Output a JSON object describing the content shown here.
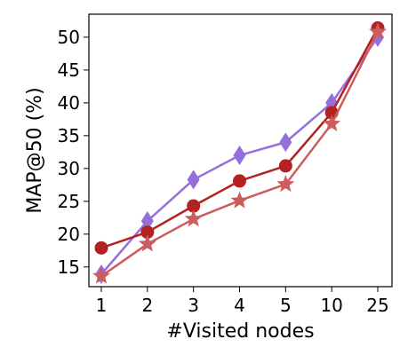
{
  "chart_data": {
    "type": "line",
    "title": "",
    "xlabel": "#Visited nodes",
    "ylabel": "MAP@50 (%)",
    "categories": [
      "1",
      "2",
      "3",
      "4",
      "5",
      "10",
      "25"
    ],
    "ylim": [
      12,
      53.5
    ],
    "yticks": [
      15,
      20,
      25,
      30,
      35,
      40,
      45,
      50
    ],
    "grid": false,
    "legend": "none",
    "series": [
      {
        "color": "#9370db",
        "marker": "thin_diamond",
        "values": [
          13.9,
          22.0,
          28.3,
          32.0,
          34.0,
          40.0,
          50.0
        ]
      },
      {
        "color": "#b22222",
        "marker": "circle",
        "values": [
          17.9,
          20.3,
          24.3,
          28.1,
          30.4,
          38.5,
          51.4
        ]
      },
      {
        "color": "#cd5c5c",
        "marker": "star",
        "values": [
          13.6,
          18.5,
          22.3,
          25.1,
          27.6,
          36.8,
          50.8
        ]
      }
    ]
  }
}
